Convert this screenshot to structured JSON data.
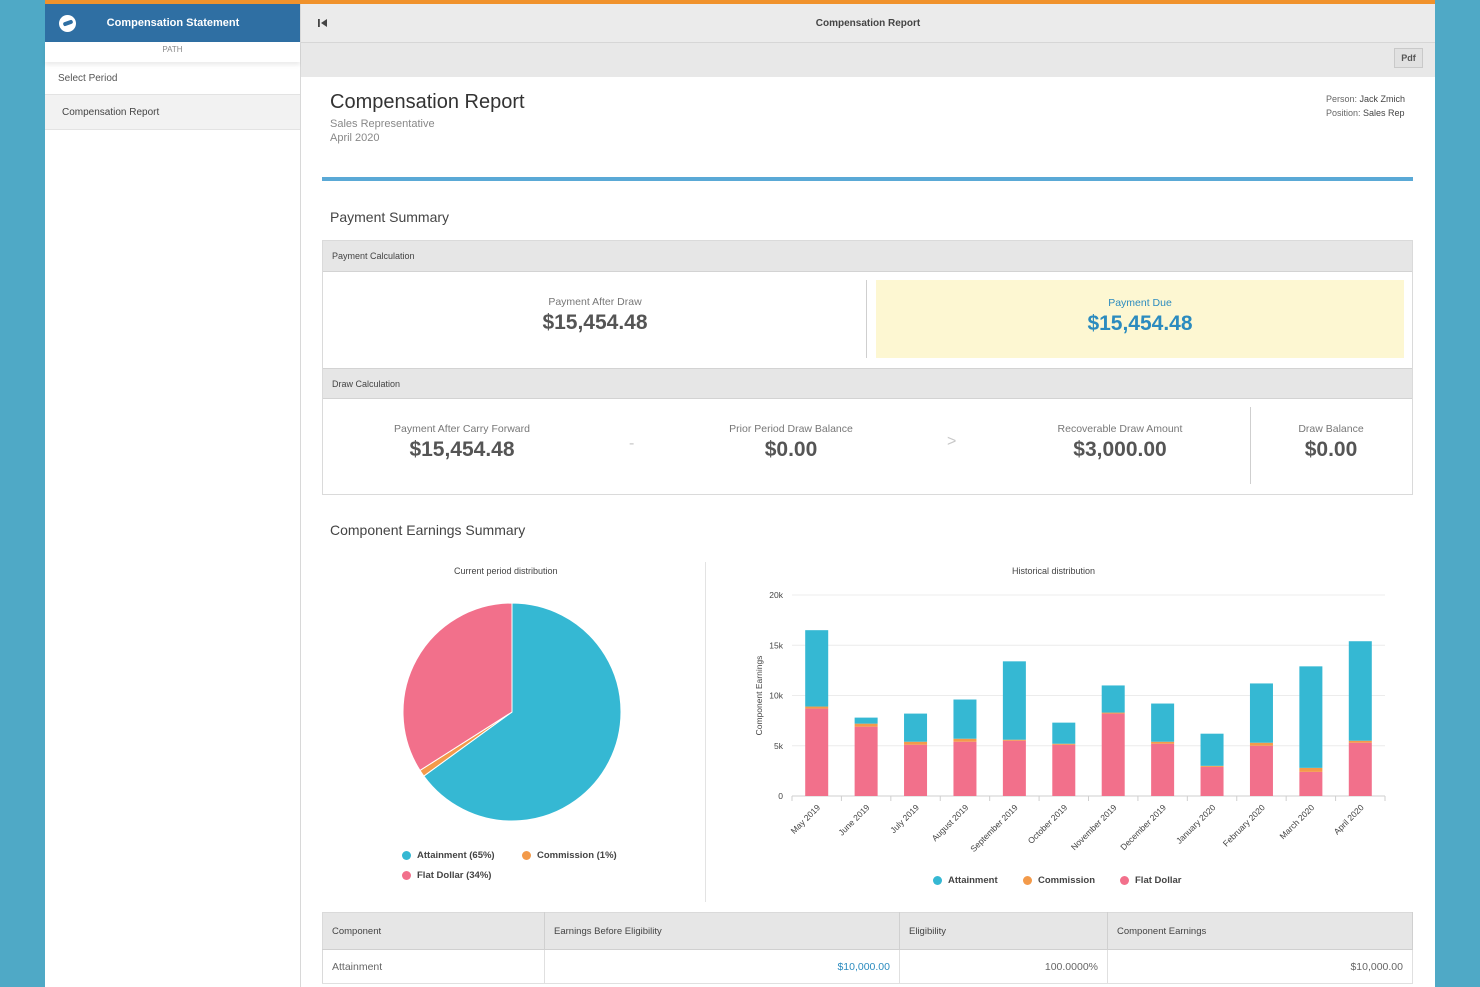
{
  "sidebar": {
    "title": "Compensation Statement",
    "path_label": "PATH",
    "items": [
      {
        "label": "Select Period"
      },
      {
        "label": "Compensation Report"
      }
    ]
  },
  "topbar": {
    "title": "Compensation Report"
  },
  "toolbar": {
    "pdf_label": "Pdf"
  },
  "report": {
    "title": "Compensation Report",
    "role": "Sales Representative",
    "period": "April 2020",
    "person_label": "Person:",
    "person": "Jack Zmich",
    "position_label": "Position:",
    "position": "Sales Rep"
  },
  "payment_summary": {
    "title": "Payment Summary",
    "calc_header": "Payment Calculation",
    "after_draw_label": "Payment After Draw",
    "after_draw_value": "$15,454.48",
    "due_label": "Payment Due",
    "due_value": "$15,454.48",
    "draw_header": "Draw Calculation",
    "carry_label": "Payment After Carry Forward",
    "carry_value": "$15,454.48",
    "op_minus": "-",
    "prior_label": "Prior Period Draw Balance",
    "prior_value": "$0.00",
    "op_gt": ">",
    "recoverable_label": "Recoverable Draw Amount",
    "recoverable_value": "$3,000.00",
    "balance_label": "Draw Balance",
    "balance_value": "$0.00"
  },
  "earnings": {
    "title": "Component Earnings Summary",
    "pie_caption": "Current period distribution",
    "bar_caption": "Historical distribution",
    "pie_legend": [
      "Attainment (65%)",
      "Commission (1%)",
      "Flat Dollar (34%)"
    ],
    "bar_legend": [
      "Attainment",
      "Commission",
      "Flat Dollar"
    ],
    "colors": {
      "attainment": "#35b8d3",
      "commission": "#f39a4a",
      "flat_dollar": "#f2708b"
    }
  },
  "chart_data": [
    {
      "type": "pie",
      "title": "Current period distribution",
      "labels": [
        "Attainment",
        "Commission",
        "Flat Dollar"
      ],
      "values": [
        65,
        1,
        34
      ]
    },
    {
      "type": "bar",
      "stacked": true,
      "title": "Historical distribution",
      "ylabel": "Component Earnings",
      "ylim": [
        0,
        20000
      ],
      "yticks": [
        "0",
        "5k",
        "10k",
        "15k",
        "20k"
      ],
      "categories": [
        "May 2019",
        "June 2019",
        "July 2019",
        "August 2019",
        "September 2019",
        "October 2019",
        "November 2019",
        "December 2019",
        "January 2020",
        "February 2020",
        "March 2020",
        "April 2020"
      ],
      "series": [
        {
          "name": "Flat Dollar",
          "values": [
            8700,
            6900,
            5100,
            5400,
            5500,
            5100,
            8200,
            5200,
            2900,
            5000,
            2400,
            5300
          ]
        },
        {
          "name": "Commission",
          "values": [
            200,
            300,
            300,
            300,
            100,
            100,
            100,
            200,
            100,
            300,
            400,
            200
          ]
        },
        {
          "name": "Attainment",
          "values": [
            7600,
            600,
            2800,
            3900,
            7800,
            2100,
            2700,
            3800,
            3200,
            5900,
            10100,
            9900
          ]
        }
      ],
      "legend": "bottom"
    }
  ],
  "table": {
    "headers": [
      "Component",
      "Earnings Before Eligibility",
      "Eligibility",
      "Component Earnings"
    ],
    "rows": [
      [
        "Attainment",
        "$10,000.00",
        "100.0000%",
        "$10,000.00"
      ]
    ]
  }
}
